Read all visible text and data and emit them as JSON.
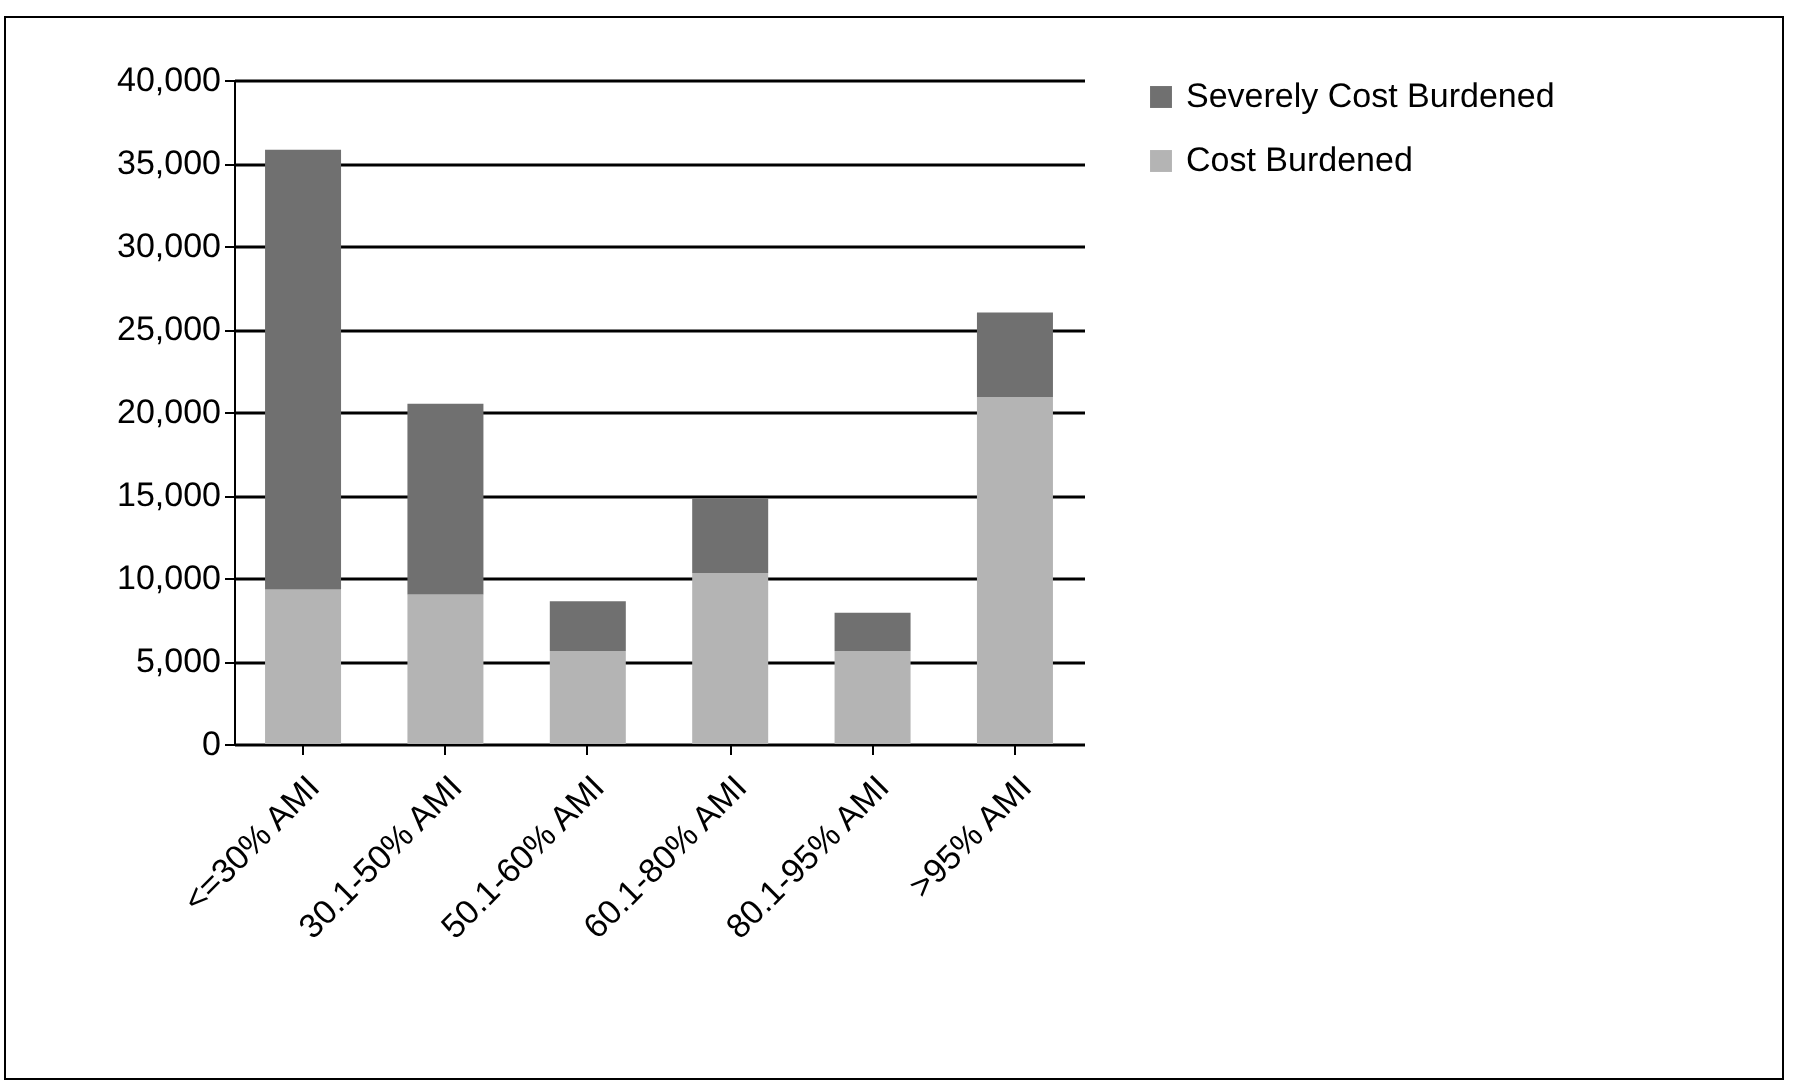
{
  "chart_data": {
    "type": "bar",
    "stacked": true,
    "categories": [
      "<=30% AMI",
      "30.1-50% AMI",
      "50.1-60% AMI",
      "60.1-80% AMI",
      "80.1-95% AMI",
      ">95% AMI"
    ],
    "series": [
      {
        "name": "Cost Burdened",
        "color": "#b4b4b4",
        "values": [
          9300,
          9000,
          5600,
          10300,
          5600,
          20900
        ]
      },
      {
        "name": "Severely Cost Burdened",
        "color": "#707070",
        "values": [
          26500,
          11500,
          3000,
          4500,
          2300,
          5100
        ]
      }
    ],
    "ylim": [
      0,
      40000
    ],
    "yticks": [
      0,
      {
        "value": 5000,
        "label": "5,000"
      },
      {
        "value": 10000,
        "label": "10,000"
      },
      {
        "value": 15000,
        "label": "15,000"
      },
      {
        "value": 20000,
        "label": "20,000"
      },
      {
        "value": 25000,
        "label": "25,000"
      },
      {
        "value": 30000,
        "label": "30,000"
      },
      {
        "value": 35000,
        "label": "35,000"
      },
      {
        "value": 40000,
        "label": "40,000"
      }
    ],
    "grid": "y",
    "legend": "right"
  }
}
